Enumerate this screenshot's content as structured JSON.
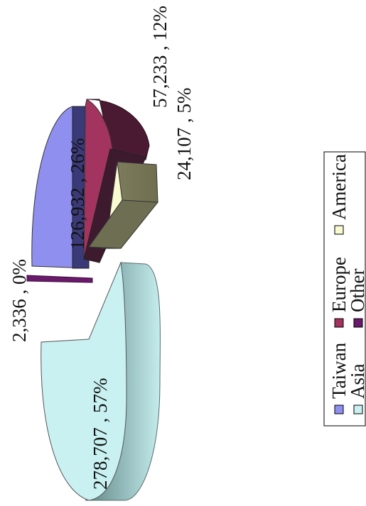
{
  "chart_data": {
    "type": "pie",
    "style": "3d-exploded",
    "orientation": "rotated 90 degrees counter-clockwise",
    "slices": [
      {
        "name": "Taiwan",
        "value": 126932,
        "percent": 26,
        "label": "126,932 , 26%",
        "color": "#8f8ff0"
      },
      {
        "name": "Europe",
        "value": 57233,
        "percent": 12,
        "label": "57,233 , 12%",
        "color": "#a3335f"
      },
      {
        "name": "America",
        "value": 24107,
        "percent": 5,
        "label": "24,107 , 5%",
        "color": "#fafad0"
      },
      {
        "name": "Asia",
        "value": 278707,
        "percent": 57,
        "label": "278,707 , 57%",
        "color": "#c9f1f1"
      },
      {
        "name": "Other",
        "value": 2336,
        "percent": 0,
        "label": "2,336 , 0%",
        "color": "#6a1a6a"
      }
    ],
    "legend_placement": "bottom (rotated)",
    "legend": [
      "Taiwan",
      "Europe",
      "America",
      "Asia",
      "Other"
    ]
  }
}
